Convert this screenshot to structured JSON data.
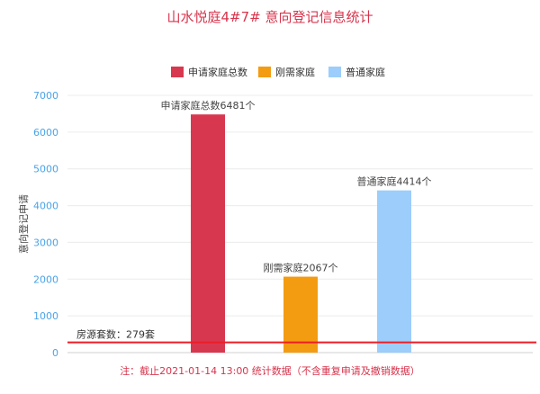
{
  "chart_data": {
    "type": "bar",
    "title": "山水悦庭4#7# 意向登记信息统计",
    "ylabel": "意向登记申请",
    "xlabel": "",
    "ylim": [
      0,
      7000
    ],
    "yticks": [
      0,
      1000,
      2000,
      3000,
      4000,
      5000,
      6000,
      7000
    ],
    "grid": true,
    "legend_position": "top",
    "series": [
      {
        "name": "申请家庭总数",
        "value": 6481,
        "label": "申请家庭总数6481个",
        "color": "#d7384f"
      },
      {
        "name": "刚需家庭",
        "value": 2067,
        "label": "刚需家庭2067个",
        "color": "#f39c12"
      },
      {
        "name": "普通家庭",
        "value": 4414,
        "label": "普通家庭4414个",
        "color": "#9ccdfb"
      }
    ],
    "reference_line": {
      "value": 279,
      "label": "房源套数：279套",
      "color": "#ee1c25"
    },
    "note": "注：截止2021-01-14 13:00 统计数据（不含重复申请及撤销数据）"
  }
}
